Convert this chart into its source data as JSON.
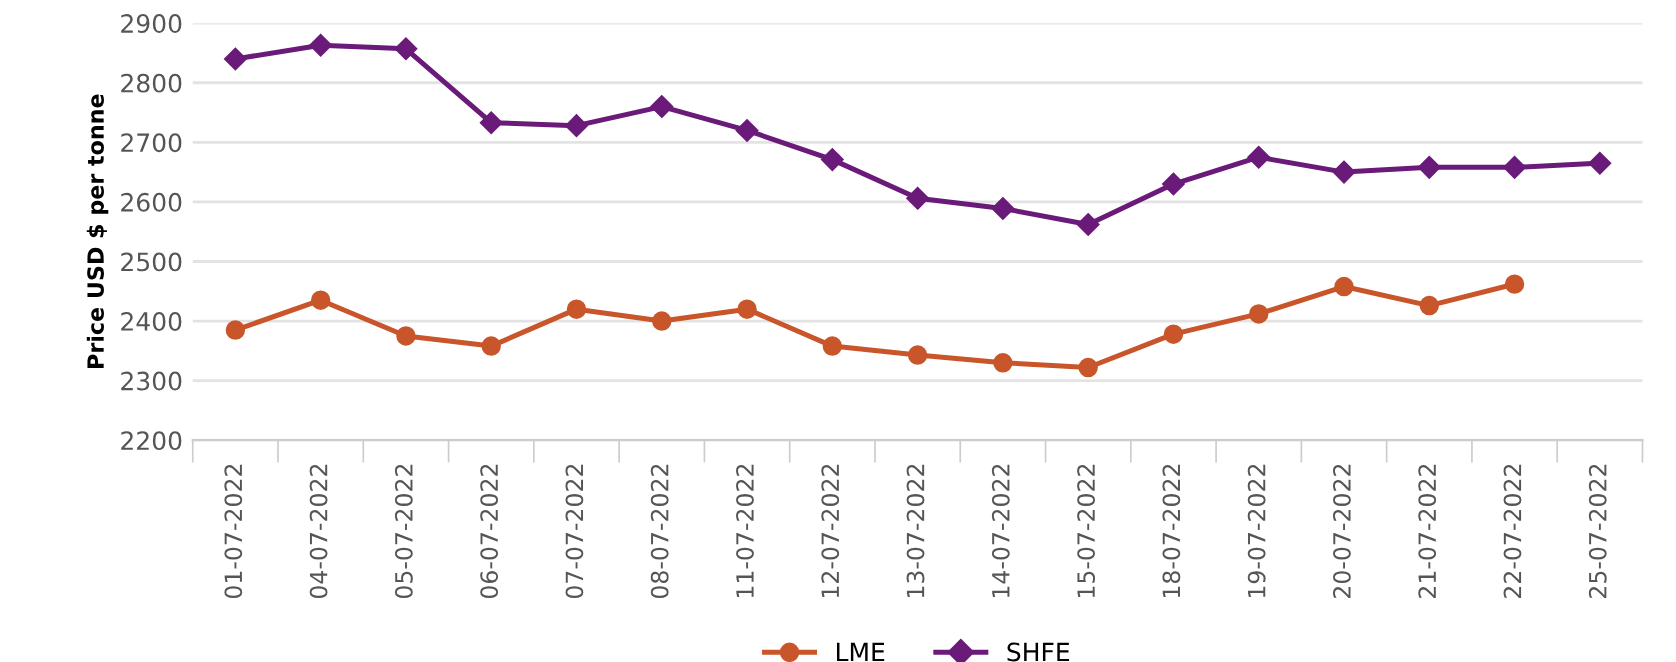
{
  "chart_data": {
    "type": "line",
    "ylabel": "Price USD $ per tonne",
    "categories": [
      "01-07-2022",
      "04-07-2022",
      "05-07-2022",
      "06-07-2022",
      "07-07-2022",
      "08-07-2022",
      "11-07-2022",
      "12-07-2022",
      "13-07-2022",
      "14-07-2022",
      "15-07-2022",
      "18-07-2022",
      "19-07-2022",
      "20-07-2022",
      "21-07-2022",
      "22-07-2022",
      "25-07-2022"
    ],
    "series": [
      {
        "name": "LME",
        "color": "#c8562a",
        "marker": "circle",
        "values": [
          2385,
          2435,
          2375,
          2358,
          2420,
          2400,
          2420,
          2358,
          2343,
          2330,
          2322,
          2378,
          2412,
          2458,
          2426,
          2462,
          null
        ]
      },
      {
        "name": "SHFE",
        "color": "#6a1a78",
        "marker": "diamond",
        "values": [
          2840,
          2863,
          2857,
          2733,
          2728,
          2760,
          2720,
          2671,
          2606,
          2589,
          2562,
          2630,
          2675,
          2650,
          2658,
          2658,
          2665
        ]
      }
    ],
    "ylim": [
      2200,
      2900
    ],
    "yticks": [
      2200,
      2300,
      2400,
      2500,
      2600,
      2700,
      2800,
      2900
    ],
    "grid": "y",
    "legend": "bottom"
  }
}
